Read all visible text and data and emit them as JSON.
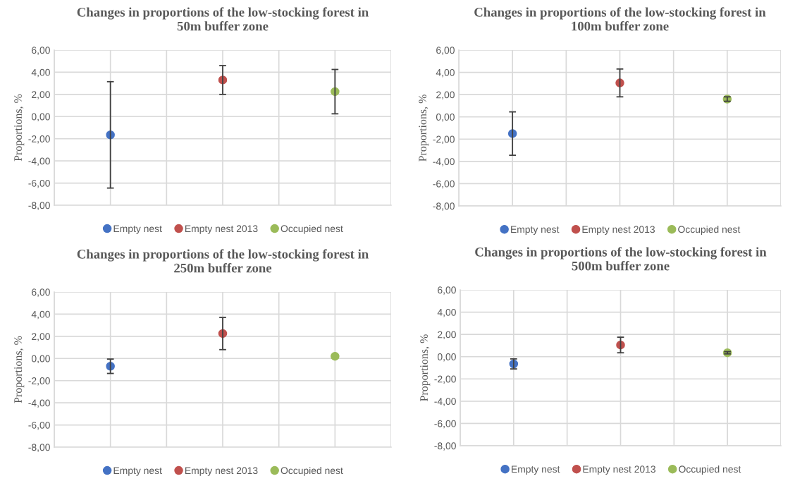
{
  "chart_data": [
    {
      "type": "scatter",
      "title": "Changes in proportions of the low-stocking forest in\n50m buffer zone",
      "ylabel": "Proportions, %",
      "categories": [
        null,
        null,
        null
      ],
      "ylim": [
        -8,
        6
      ],
      "yticks": [
        {
          "value": -8,
          "label": "-8,00"
        },
        {
          "value": -6,
          "label": "-6,00"
        },
        {
          "value": -4,
          "label": "-4,00"
        },
        {
          "value": -2,
          "label": "-2,00"
        },
        {
          "value": 0,
          "label": "0,00"
        },
        {
          "value": 2,
          "label": "2,00"
        },
        {
          "value": 4,
          "label": "4,00"
        },
        {
          "value": 6,
          "label": "6,00"
        }
      ],
      "grid": true,
      "legend": "bottom",
      "marker": "circle",
      "series": [
        {
          "name": "Empty nest",
          "color": "#4472c4",
          "values": [
            -1.65,
            null,
            null
          ],
          "errors": [
            4.8,
            null,
            null
          ]
        },
        {
          "name": "Empty nest 2013",
          "color": "#c0504d",
          "values": [
            null,
            3.3,
            null
          ],
          "errors": [
            null,
            1.3,
            null
          ]
        },
        {
          "name": "Occupied nest",
          "color": "#9bbb59",
          "values": [
            null,
            null,
            2.25
          ],
          "errors": [
            null,
            null,
            2.0
          ]
        }
      ]
    },
    {
      "type": "scatter",
      "title": "Changes in proportions of the low-stocking forest in\n100m buffer zone",
      "ylabel": "Proportions, %",
      "categories": [
        null,
        null,
        null
      ],
      "ylim": [
        -8,
        6
      ],
      "yticks": [
        {
          "value": -8,
          "label": "-8,00"
        },
        {
          "value": -6,
          "label": "-6,00"
        },
        {
          "value": -4,
          "label": "-4,00"
        },
        {
          "value": -2,
          "label": "-2,00"
        },
        {
          "value": 0,
          "label": "0,00"
        },
        {
          "value": 2,
          "label": "2,00"
        },
        {
          "value": 4,
          "label": "4,00"
        },
        {
          "value": 6,
          "label": "6,00"
        }
      ],
      "grid": true,
      "legend": "bottom",
      "marker": "circle",
      "series": [
        {
          "name": "Empty nest",
          "color": "#4472c4",
          "values": [
            -1.5,
            null,
            null
          ],
          "errors": [
            1.95,
            null,
            null
          ]
        },
        {
          "name": "Empty nest 2013",
          "color": "#c0504d",
          "values": [
            null,
            3.05,
            null
          ],
          "errors": [
            null,
            1.25,
            null
          ]
        },
        {
          "name": "Occupied nest",
          "color": "#9bbb59",
          "values": [
            null,
            null,
            1.6
          ],
          "errors": [
            null,
            null,
            0.2
          ]
        }
      ]
    },
    {
      "type": "scatter",
      "title": "Changes in proportions of the low-stocking forest in\n250m buffer zone",
      "ylabel": "Proportions, %",
      "categories": [
        null,
        null,
        null
      ],
      "ylim": [
        -8,
        6
      ],
      "yticks": [
        {
          "value": -8,
          "label": "-8,00"
        },
        {
          "value": -6,
          "label": "-6,00"
        },
        {
          "value": -4,
          "label": "-4,00"
        },
        {
          "value": -2,
          "label": "-2,00"
        },
        {
          "value": 0,
          "label": "0,00"
        },
        {
          "value": 2,
          "label": "2,00"
        },
        {
          "value": 4,
          "label": "4,00"
        },
        {
          "value": 6,
          "label": "6,00"
        }
      ],
      "grid": true,
      "legend": "bottom",
      "marker": "circle",
      "series": [
        {
          "name": "Empty nest",
          "color": "#4472c4",
          "values": [
            -0.7,
            null,
            null
          ],
          "errors": [
            0.65,
            null,
            null
          ]
        },
        {
          "name": "Empty nest 2013",
          "color": "#c0504d",
          "values": [
            null,
            2.25,
            null
          ],
          "errors": [
            null,
            1.45,
            null
          ]
        },
        {
          "name": "Occupied nest",
          "color": "#9bbb59",
          "values": [
            null,
            null,
            0.2
          ]
        }
      ]
    },
    {
      "type": "scatter",
      "title": "Changes in proportions of the low-stocking forest in\n500m buffer zone",
      "ylabel": "Proportions, %",
      "categories": [
        null,
        null,
        null
      ],
      "ylim": [
        -8,
        6
      ],
      "yticks": [
        {
          "value": -8,
          "label": "-8,00"
        },
        {
          "value": -6,
          "label": "-6,00"
        },
        {
          "value": -4,
          "label": "-4,00"
        },
        {
          "value": -2,
          "label": "-2,00"
        },
        {
          "value": 0,
          "label": "0,00"
        },
        {
          "value": 2,
          "label": "2,00"
        },
        {
          "value": 4,
          "label": "4,00"
        },
        {
          "value": 6,
          "label": "6,00"
        }
      ],
      "grid": true,
      "legend": "bottom",
      "marker": "circle",
      "series": [
        {
          "name": "Empty nest",
          "color": "#4472c4",
          "values": [
            -0.65,
            null,
            null
          ],
          "errors": [
            0.45,
            null,
            null
          ]
        },
        {
          "name": "Empty nest 2013",
          "color": "#c0504d",
          "values": [
            null,
            1.05,
            null
          ],
          "errors": [
            null,
            0.7,
            null
          ]
        },
        {
          "name": "Occupied nest",
          "color": "#9bbb59",
          "values": [
            null,
            null,
            0.35
          ],
          "errors": [
            null,
            null,
            0.1
          ]
        }
      ]
    }
  ]
}
